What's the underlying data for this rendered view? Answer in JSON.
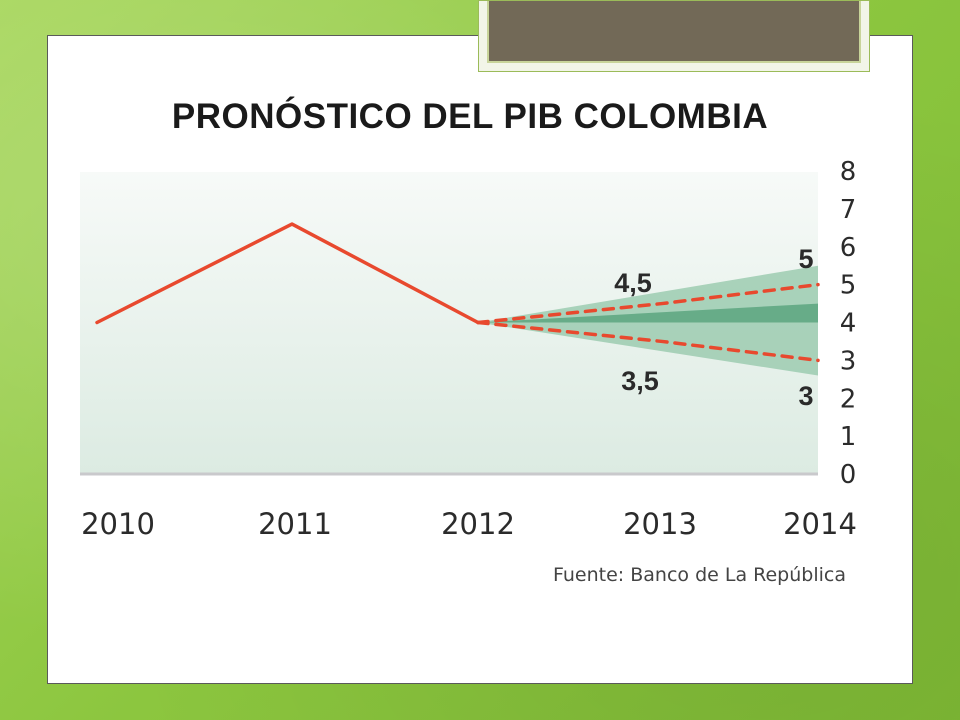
{
  "slide": {
    "title": "PRONÓSTICO DEL PIB COLOMBIA",
    "source": "Fuente: Banco de La República"
  },
  "colors": {
    "background": "#8cc63f",
    "line": "#e8492e",
    "band_outer": "#9ccbb0",
    "band_inner": "#5fa783",
    "plot_area": "#e6f0ea"
  },
  "chart_data": {
    "type": "line",
    "title": "PRONÓSTICO DEL PIB COLOMBIA",
    "xlabel": "",
    "ylabel": "",
    "x": [
      "2010",
      "2011",
      "2012",
      "2013",
      "2014"
    ],
    "ylim": [
      0,
      8
    ],
    "yticks": [
      "0",
      "1",
      "2",
      "3",
      "4",
      "5",
      "6",
      "7",
      "8"
    ],
    "y_axis_position": "right",
    "series": [
      {
        "values": [
          4.0,
          6.6,
          4.0,
          null,
          null
        ]
      },
      {
        "values": [
          null,
          null,
          4.0,
          4.5,
          5.0
        ],
        "style": "dashed"
      },
      {
        "values": [
          null,
          null,
          4.0,
          3.5,
          3.0
        ],
        "style": "dashed"
      }
    ],
    "bands": [
      {
        "x": [
          "2012",
          "2014"
        ],
        "lower": [
          4.0,
          2.6
        ],
        "upper": [
          4.0,
          5.5
        ],
        "shade": "outer"
      },
      {
        "x": [
          "2012",
          "2014"
        ],
        "lower": [
          4.0,
          4.0
        ],
        "upper": [
          4.0,
          4.5
        ],
        "shade": "inner"
      }
    ],
    "annotations": [
      {
        "text": "4,5",
        "x": "2013",
        "y": 4.5,
        "placement": "above"
      },
      {
        "text": "3,5",
        "x": "2013",
        "y": 3.5,
        "placement": "below"
      },
      {
        "text": "5",
        "x": "2014",
        "y": 5.0,
        "placement": "above"
      },
      {
        "text": "3",
        "x": "2014",
        "y": 3.0,
        "placement": "below"
      }
    ],
    "grid": false,
    "legend": "none"
  }
}
